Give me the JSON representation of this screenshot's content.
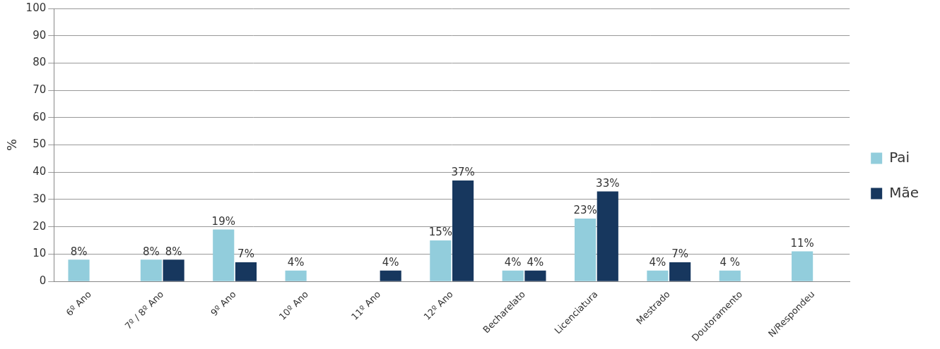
{
  "chart_data": {
    "type": "bar",
    "y_label": "%",
    "categories": [
      "6º Ano",
      "7º / 8º Ano",
      "9º Ano",
      "10º Ano",
      "11º Ano",
      "12º Ano",
      "Becharelato",
      "Licenciatura",
      "Mestrado",
      "Doutoramento",
      "N/Respondeu"
    ],
    "series": [
      {
        "name": "Pai",
        "color": "#92cddc",
        "values": [
          8,
          8,
          19,
          4,
          null,
          15,
          4,
          23,
          4,
          4,
          11
        ],
        "value_labels": [
          "8%",
          "8%",
          "19%",
          "4%",
          null,
          "15%",
          "4%",
          "23%",
          "4%",
          "4 %",
          "11%"
        ]
      },
      {
        "name": "Mãe",
        "color": "#17375e",
        "values": [
          null,
          8,
          7,
          null,
          4,
          37,
          4,
          33,
          7,
          null,
          null
        ],
        "value_labels": [
          null,
          "8%",
          "7%",
          null,
          "4%",
          "37%",
          "4%",
          "33%",
          "7%",
          null,
          null
        ]
      }
    ],
    "ylim": [
      0,
      100
    ],
    "yticks": [
      0,
      10,
      20,
      30,
      40,
      50,
      60,
      70,
      80,
      90,
      100
    ],
    "grid": true,
    "legend": "right",
    "data_labels": true
  }
}
